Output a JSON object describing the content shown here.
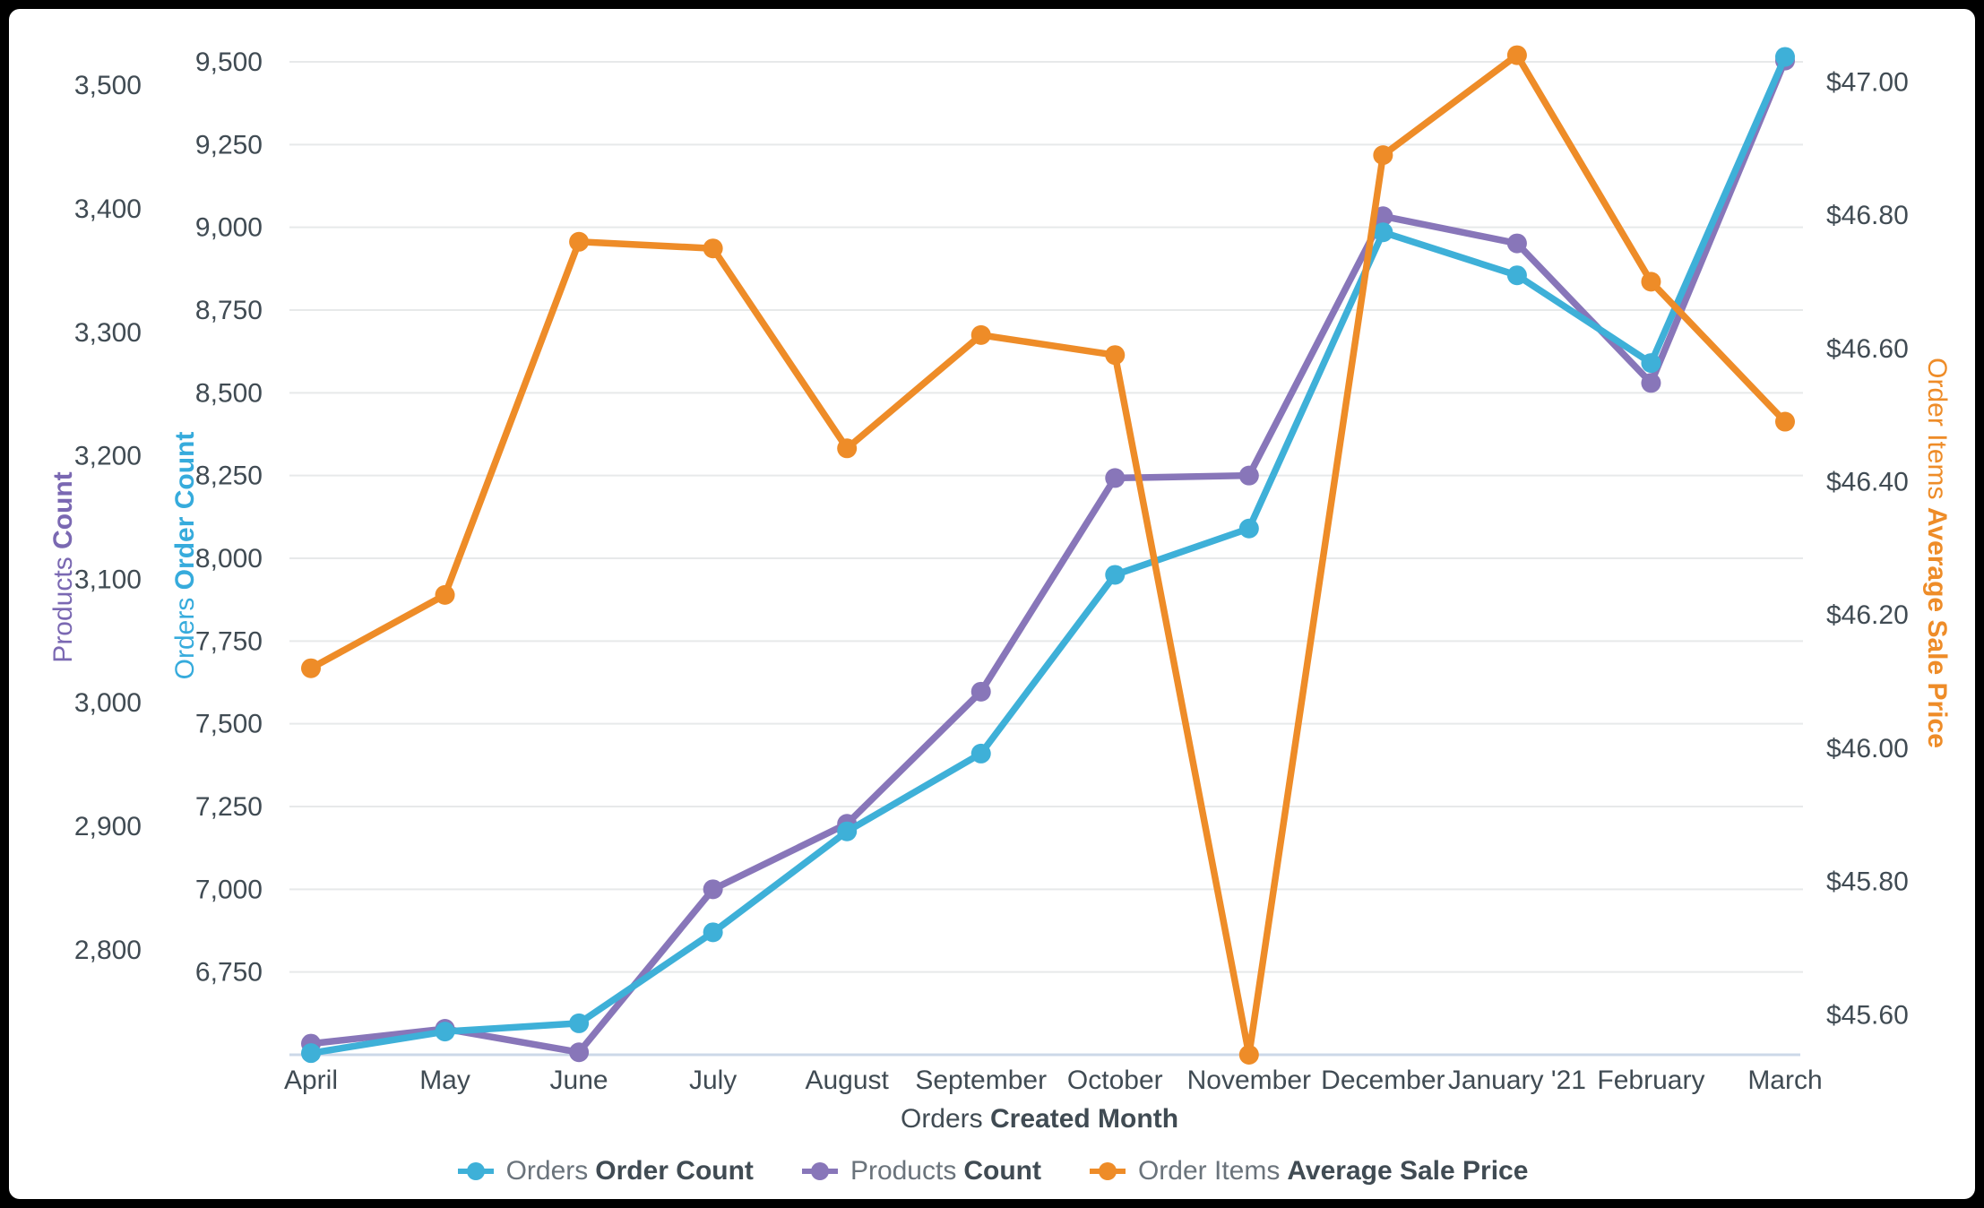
{
  "chart_data": {
    "type": "line",
    "grid": true,
    "legend_position": "bottom",
    "categories": [
      "April",
      "May",
      "June",
      "July",
      "August",
      "September",
      "October",
      "November",
      "December",
      "January '21",
      "February",
      "March"
    ],
    "x_axis": {
      "title_regular": "Orders",
      "title_bold": "Created Month"
    },
    "axes": {
      "products": {
        "title_regular": "Products",
        "title_bold": "Count",
        "side": "far-left",
        "color": "#7a68b2",
        "range": [
          2715,
          3519
        ],
        "ticks": [
          {
            "label": "2,800",
            "value": 2800
          },
          {
            "label": "2,900",
            "value": 2900
          },
          {
            "label": "3,000",
            "value": 3000
          },
          {
            "label": "3,100",
            "value": 3100
          },
          {
            "label": "3,200",
            "value": 3200
          },
          {
            "label": "3,300",
            "value": 3300
          },
          {
            "label": "3,400",
            "value": 3400
          },
          {
            "label": "3,500",
            "value": 3500
          }
        ]
      },
      "orders": {
        "title_regular": "Orders",
        "title_bold": "Order Count",
        "side": "left",
        "color": "#36abdc",
        "range": [
          6500,
          9500
        ],
        "ticks": [
          {
            "label": "6,750",
            "value": 6750
          },
          {
            "label": "7,000",
            "value": 7000
          },
          {
            "label": "7,250",
            "value": 7250
          },
          {
            "label": "7,500",
            "value": 7500
          },
          {
            "label": "7,750",
            "value": 7750
          },
          {
            "label": "8,000",
            "value": 8000
          },
          {
            "label": "8,250",
            "value": 8250
          },
          {
            "label": "8,500",
            "value": 8500
          },
          {
            "label": "8,750",
            "value": 8750
          },
          {
            "label": "9,000",
            "value": 9000
          },
          {
            "label": "9,250",
            "value": 9250
          },
          {
            "label": "9,500",
            "value": 9500
          }
        ]
      },
      "price": {
        "title_regular": "Order Items",
        "title_bold": "Average Sale Price",
        "side": "right",
        "color": "#ee8c28",
        "range": [
          45.54,
          47.03
        ],
        "ticks": [
          {
            "label": "$45.60",
            "value": 45.6
          },
          {
            "label": "$45.80",
            "value": 45.8
          },
          {
            "label": "$46.00",
            "value": 46.0
          },
          {
            "label": "$46.20",
            "value": 46.2
          },
          {
            "label": "$46.40",
            "value": 46.4
          },
          {
            "label": "$46.60",
            "value": 46.6
          },
          {
            "label": "$46.80",
            "value": 46.8
          },
          {
            "label": "$47.00",
            "value": 47.0
          }
        ]
      }
    },
    "series": [
      {
        "id": "products-count",
        "name_regular": "Products",
        "name_bold": "Count",
        "axis": "products",
        "color": "#8876b9",
        "values": [
          2724,
          2736,
          2717,
          2849,
          2902,
          3009,
          3182,
          3184,
          3394,
          3372,
          3259,
          3520
        ]
      },
      {
        "id": "orders-order-count",
        "name_regular": "Orders",
        "name_bold": "Order Count",
        "axis": "orders",
        "color": "#3eb0d8",
        "values": [
          6505,
          6570,
          6595,
          6870,
          7175,
          7410,
          7950,
          8090,
          8985,
          8855,
          8590,
          9515
        ]
      },
      {
        "id": "order-items-average-sale-price",
        "name_regular": "Order Items",
        "name_bold": "Average Sale Price",
        "axis": "price",
        "color": "#ee8c28",
        "values": [
          46.12,
          46.23,
          46.76,
          46.75,
          46.45,
          46.62,
          46.59,
          45.54,
          46.89,
          47.04,
          46.7,
          46.49
        ]
      }
    ],
    "legend_order": [
      "orders-order-count",
      "products-count",
      "order-items-average-sale-price"
    ],
    "style": {
      "grid_color": "#e7e9ea",
      "baseline_color": "#ccd8e8",
      "tick_text_color": "#404b53",
      "legend_regular_color": "#6a737b",
      "legend_bold_color": "#404b53"
    }
  }
}
